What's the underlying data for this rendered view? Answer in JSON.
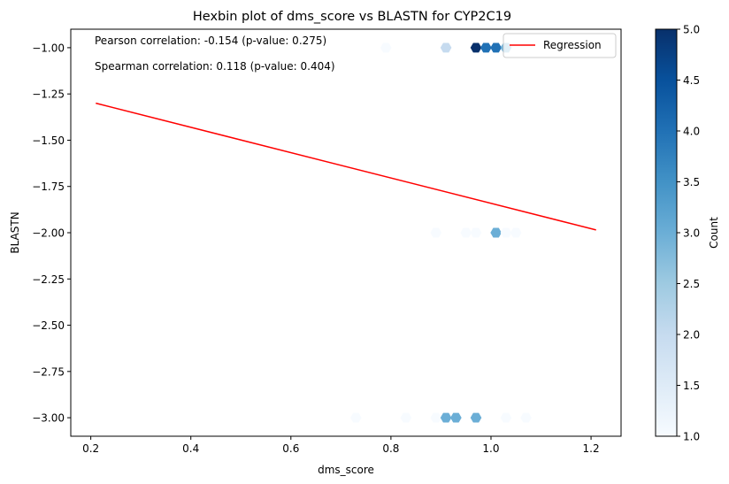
{
  "chart_data": {
    "type": "hexbin",
    "title": "Hexbin plot of dms_score vs BLASTN for CYP2C19",
    "xlabel": "dms_score",
    "ylabel": "BLASTN",
    "xlim": [
      0.16,
      1.26
    ],
    "ylim": [
      -3.1,
      -0.9
    ],
    "x_ticks": [
      0.2,
      0.4,
      0.6,
      0.8,
      1.0,
      1.2
    ],
    "x_tick_labels": [
      "0.2",
      "0.4",
      "0.6",
      "0.8",
      "1.0",
      "1.2"
    ],
    "y_ticks": [
      -1.0,
      -1.25,
      -1.5,
      -1.75,
      -2.0,
      -2.25,
      -2.5,
      -2.75,
      -3.0
    ],
    "y_tick_labels": [
      "−1.00",
      "−1.25",
      "−1.50",
      "−1.75",
      "−2.00",
      "−2.25",
      "−2.50",
      "−2.75",
      "−3.00"
    ],
    "grid": false,
    "colormap": "Blues",
    "bins": [
      {
        "x": 0.79,
        "y": -1.0,
        "count": 1
      },
      {
        "x": 0.91,
        "y": -1.0,
        "count": 2
      },
      {
        "x": 0.97,
        "y": -1.0,
        "count": 5
      },
      {
        "x": 0.99,
        "y": -1.0,
        "count": 4
      },
      {
        "x": 1.01,
        "y": -1.0,
        "count": 4
      },
      {
        "x": 1.03,
        "y": -1.0,
        "count": 3
      },
      {
        "x": 0.89,
        "y": -2.0,
        "count": 1
      },
      {
        "x": 0.95,
        "y": -2.0,
        "count": 1
      },
      {
        "x": 0.97,
        "y": -2.0,
        "count": 1
      },
      {
        "x": 1.01,
        "y": -2.0,
        "count": 3
      },
      {
        "x": 1.03,
        "y": -2.0,
        "count": 1
      },
      {
        "x": 1.05,
        "y": -2.0,
        "count": 1
      },
      {
        "x": 0.73,
        "y": -3.0,
        "count": 1
      },
      {
        "x": 0.83,
        "y": -3.0,
        "count": 1
      },
      {
        "x": 0.89,
        "y": -3.0,
        "count": 1
      },
      {
        "x": 0.91,
        "y": -3.0,
        "count": 3
      },
      {
        "x": 0.93,
        "y": -3.0,
        "count": 3
      },
      {
        "x": 0.97,
        "y": -3.0,
        "count": 3
      },
      {
        "x": 1.03,
        "y": -3.0,
        "count": 1
      },
      {
        "x": 1.07,
        "y": -3.0,
        "count": 1
      }
    ],
    "regression": {
      "name": "Regression",
      "color": "#ff0000",
      "x": [
        0.21,
        1.21
      ],
      "y": [
        -1.3,
        -1.985
      ]
    },
    "annotations": [
      "Pearson correlation: -0.154 (p-value: 0.275)",
      "Spearman correlation: 0.118 (p-value: 0.404)"
    ],
    "legend": {
      "placement": "top-right",
      "entries": [
        "Regression"
      ]
    },
    "colorbar": {
      "label": "Count",
      "min": 1.0,
      "max": 5.0,
      "ticks": [
        1.0,
        1.5,
        2.0,
        2.5,
        3.0,
        3.5,
        4.0,
        4.5,
        5.0
      ],
      "tick_labels": [
        "1.0",
        "1.5",
        "2.0",
        "2.5",
        "3.0",
        "3.5",
        "4.0",
        "4.5",
        "5.0"
      ]
    }
  }
}
